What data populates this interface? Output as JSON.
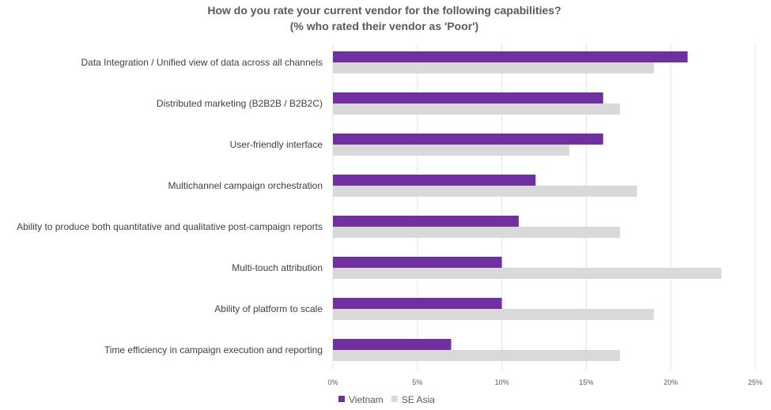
{
  "chart_data": {
    "type": "bar",
    "orientation": "horizontal",
    "title": "How do you rate your current vendor for the following capabilities?",
    "subtitle": "(% who rated their vendor as 'Poor')",
    "categories": [
      "Data Integration / Unified view of data across all channels",
      "Distributed marketing (B2B2B / B2B2C)",
      "User-friendly interface",
      "Multichannel campaign orchestration",
      "Ability to produce both quantitative and qualitative post-campaign reports",
      "Multi-touch attribution",
      "Ability of platform to scale",
      "Time efficiency in campaign execution and reporting"
    ],
    "series": [
      {
        "name": "Vietnam",
        "color": "#7030a0",
        "values": [
          21,
          16,
          16,
          12,
          11,
          10,
          10,
          7
        ]
      },
      {
        "name": "SE Asia",
        "color": "#d9d9d9",
        "values": [
          19,
          17,
          14,
          18,
          17,
          23,
          19,
          17
        ]
      }
    ],
    "xlim": [
      0,
      25
    ],
    "xticks": [
      "0%",
      "5%",
      "10%",
      "15%",
      "20%",
      "25%"
    ],
    "grid": true,
    "legend": "bottom-left"
  }
}
